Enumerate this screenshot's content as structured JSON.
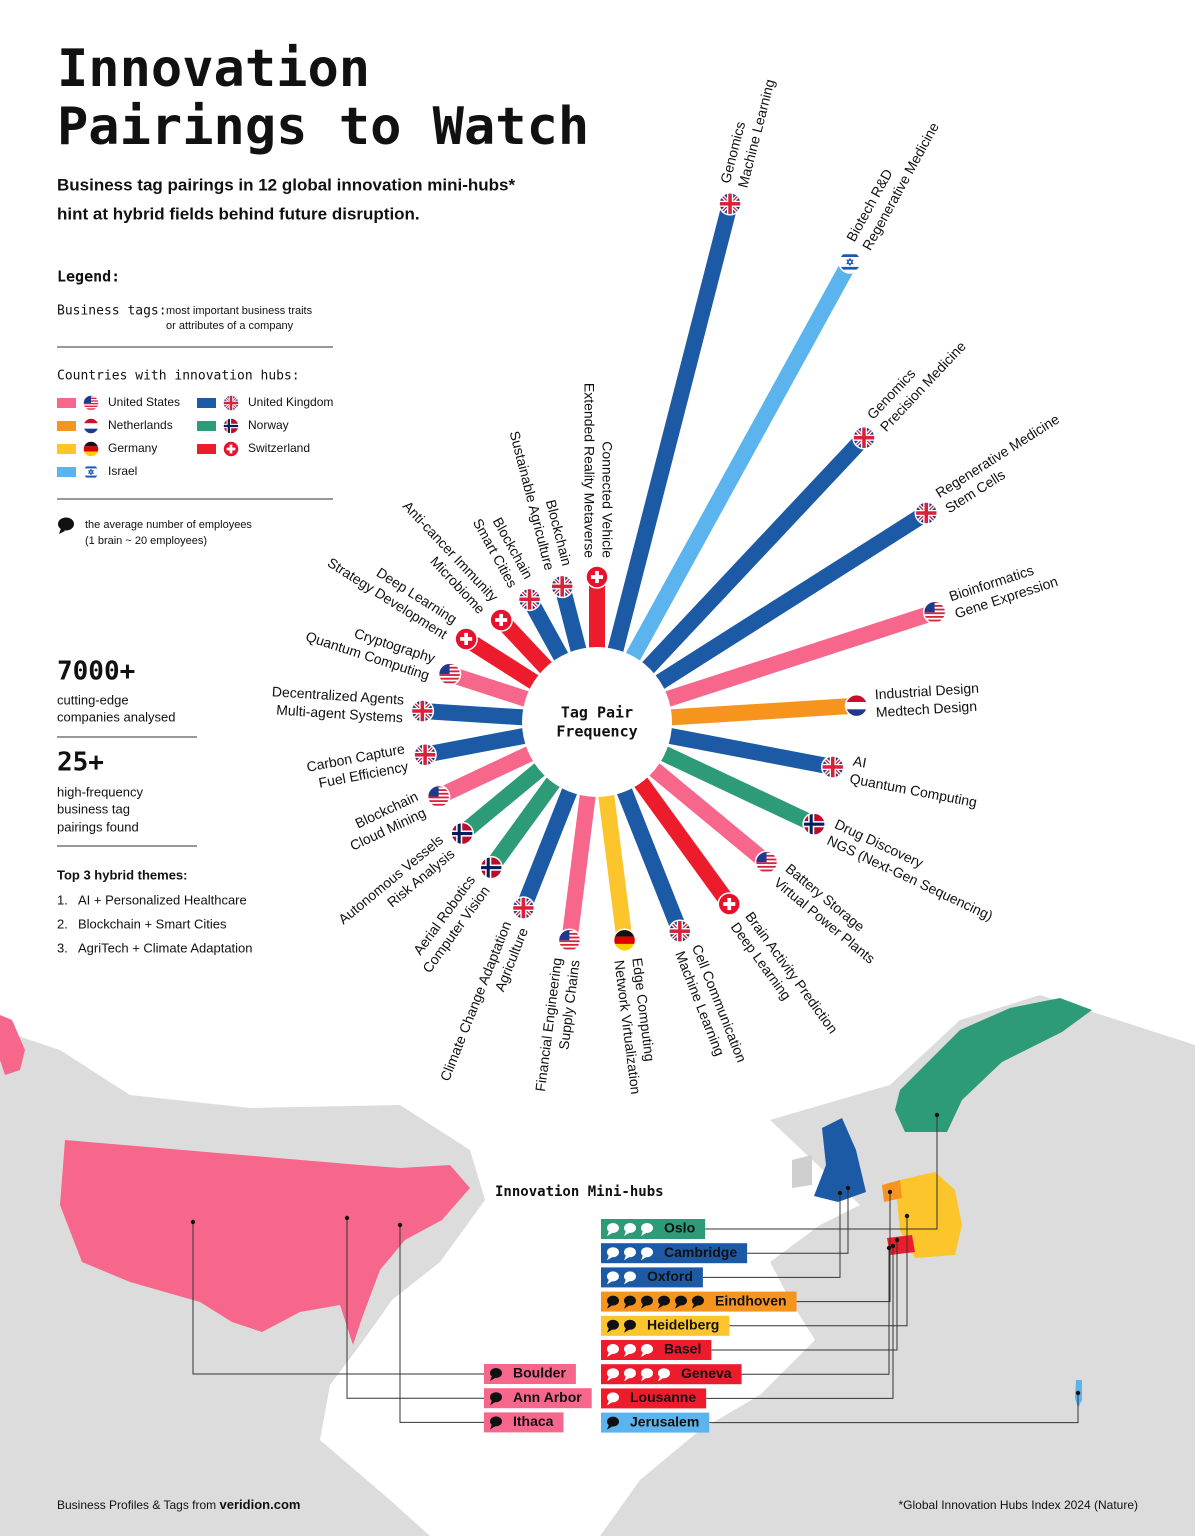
{
  "title_lines": [
    "Innovation",
    "Pairings to Watch"
  ],
  "subtitle_lines": [
    "Business tag pairings in 12 global innovation mini-hubs*",
    "hint at hybrid fields behind future disruption."
  ],
  "legend": {
    "title": "Legend:",
    "tags_label": "Business tags:",
    "tags_desc": [
      "most important business traits",
      "or attributes of a company"
    ],
    "countries_title": "Countries with innovation hubs:",
    "brain_note": [
      "the average number of employees",
      "(1 brain ~ 20 employees)"
    ]
  },
  "stats": [
    {
      "value": "7000+",
      "lines": [
        "cutting-edge",
        "companies analysed"
      ]
    },
    {
      "value": "25+",
      "lines": [
        "high-frequency",
        "business tag",
        "pairings found"
      ]
    }
  ],
  "themes": {
    "title": "Top 3 hybrid themes:",
    "items": [
      {
        "n": "1.",
        "text": "AI + Personalized Healthcare"
      },
      {
        "n": "2.",
        "text": "Blockchain + Smart Cities"
      },
      {
        "n": "3.",
        "text": "AgriTech + Climate Adaptation"
      }
    ]
  },
  "footer": {
    "source": "Business Profiles & Tags from",
    "site": "veridion.com",
    "note": "*Global Innovation Hubs Index 2024 (Nature)"
  },
  "chart_data": {
    "type": "radial_bar",
    "center_label": [
      "Tag Pair",
      "Frequency"
    ],
    "countries": [
      {
        "name": "United States",
        "color": "#f7678c"
      },
      {
        "name": "Netherlands",
        "color": "#f7941d"
      },
      {
        "name": "Germany",
        "color": "#fbc52b"
      },
      {
        "name": "Israel",
        "color": "#5bb4ee"
      },
      {
        "name": "United Kingdom",
        "color": "#1d5aa5"
      },
      {
        "name": "Norway",
        "color": "#2e9b78"
      },
      {
        "name": "Switzerland",
        "color": "#ec1c2d"
      }
    ],
    "bars": [
      {
        "tags": [
          "Connected Vehicle",
          "Extended Reality Metaverse"
        ],
        "country": "Switzerland",
        "value": 14
      },
      {
        "tags": [
          "Genomics",
          "Machine Learning"
        ],
        "country": "United Kingdom",
        "value": 92
      },
      {
        "tags": [
          "Biotech R&D",
          "Regenerative Medicine"
        ],
        "country": "Israel",
        "value": 90
      },
      {
        "tags": [
          "Genomics",
          "Precision Medicine"
        ],
        "country": "United Kingdom",
        "value": 63
      },
      {
        "tags": [
          "Regenerative Medicine",
          "Stem Cells"
        ],
        "country": "United Kingdom",
        "value": 63
      },
      {
        "tags": [
          "Bioinformatics",
          "Gene Expression"
        ],
        "country": "United States",
        "value": 56
      },
      {
        "tags": [
          "Industrial Design",
          "Medtech Design"
        ],
        "country": "Netherlands",
        "value": 37
      },
      {
        "tags": [
          "AI",
          "Quantum Computing"
        ],
        "country": "United Kingdom",
        "value": 33
      },
      {
        "tags": [
          "Drug Discovery",
          "NGS (Next-Gen Sequencing)"
        ],
        "country": "Norway",
        "value": 33
      },
      {
        "tags": [
          "Battery Storage",
          "Virtual Power Plants"
        ],
        "country": "United States",
        "value": 29
      },
      {
        "tags": [
          "Brain Activity Prediction",
          "Deep Learning"
        ],
        "country": "Switzerland",
        "value": 30
      },
      {
        "tags": [
          "Cell Communication",
          "Machine Learning"
        ],
        "country": "United Kingdom",
        "value": 30
      },
      {
        "tags": [
          "Edge Computing",
          "Network Virtualization"
        ],
        "country": "Germany",
        "value": 29
      },
      {
        "tags": [
          "Financial Engineering",
          "Supply Chains"
        ],
        "country": "United States",
        "value": 29
      },
      {
        "tags": [
          "Climate Change Adaptation",
          "Agriculture"
        ],
        "country": "United Kingdom",
        "value": 25
      },
      {
        "tags": [
          "Aerial Robotics",
          "Computer Vision"
        ],
        "country": "Norway",
        "value": 21
      },
      {
        "tags": [
          "Autonomous Vessels",
          "Risk Analysis"
        ],
        "country": "Norway",
        "value": 20
      },
      {
        "tags": [
          "Blockchain",
          "Cloud Mining"
        ],
        "country": "United States",
        "value": 20
      },
      {
        "tags": [
          "Carbon Capture",
          "Fuel Efficiency"
        ],
        "country": "United Kingdom",
        "value": 20
      },
      {
        "tags": [
          "Decentralized Agents",
          "Multi-agent Systems"
        ],
        "country": "United Kingdom",
        "value": 20
      },
      {
        "tags": [
          "Cryptography",
          "Quantum Computing"
        ],
        "country": "United States",
        "value": 16
      },
      {
        "tags": [
          "Deep Learning",
          "Strategy Development"
        ],
        "country": "Switzerland",
        "value": 16
      },
      {
        "tags": [
          "Anti-cancer Immunity",
          "Microbiome"
        ],
        "country": "Switzerland",
        "value": 13
      },
      {
        "tags": [
          "Blockchain",
          "Smart Cities"
        ],
        "country": "United Kingdom",
        "value": 13
      },
      {
        "tags": [
          "Blockchain",
          "Sustainable Agriculture"
        ],
        "country": "United Kingdom",
        "value": 13
      }
    ]
  },
  "map": {
    "title": "Innovation Mini-hubs",
    "columns": [
      [
        {
          "name": "Boulder",
          "country": "United States",
          "brains": 1
        },
        {
          "name": "Ann Arbor",
          "country": "United States",
          "brains": 1
        },
        {
          "name": "Ithaca",
          "country": "United States",
          "brains": 1
        }
      ],
      [
        {
          "name": "Oslo",
          "country": "Norway",
          "brains": 3
        },
        {
          "name": "Cambridge",
          "country": "United Kingdom",
          "brains": 3
        },
        {
          "name": "Oxford",
          "country": "United Kingdom",
          "brains": 2
        },
        {
          "name": "Eindhoven",
          "country": "Netherlands",
          "brains": 6
        },
        {
          "name": "Heidelberg",
          "country": "Germany",
          "brains": 2
        },
        {
          "name": "Basel",
          "country": "Switzerland",
          "brains": 3
        },
        {
          "name": "Geneva",
          "country": "Switzerland",
          "brains": 4
        },
        {
          "name": "Lousanne",
          "country": "Switzerland",
          "brains": 1
        },
        {
          "name": "Jerusalem",
          "country": "Israel",
          "brains": 1
        }
      ]
    ]
  }
}
